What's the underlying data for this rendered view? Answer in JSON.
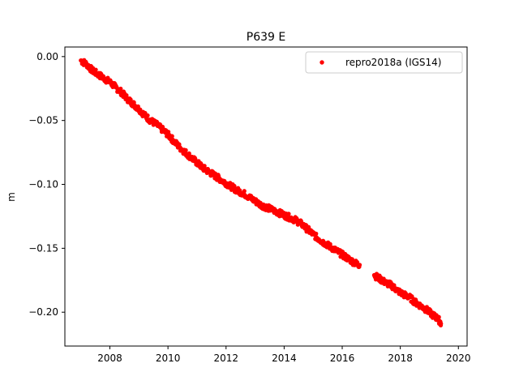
{
  "chart_data": {
    "type": "scatter",
    "title": "P639 E",
    "xlabel": "",
    "ylabel": "m",
    "xlim": [
      2006.45,
      2020.3
    ],
    "ylim": [
      -0.2265,
      0.0075
    ],
    "x_ticks": [
      2008,
      2010,
      2012,
      2014,
      2016,
      2018,
      2020
    ],
    "y_ticks": [
      0.0,
      -0.05,
      -0.1,
      -0.15,
      -0.2
    ],
    "y_tick_labels": [
      "0.00",
      "−0.05",
      "−0.10",
      "−0.15",
      "−0.20"
    ],
    "grid": false,
    "legend_position": "top-right",
    "series": [
      {
        "name": "repro2018a (IGS14)",
        "color": "#ff0000",
        "marker": "circle",
        "x": [
          2007.0,
          2007.2,
          2007.4,
          2007.6,
          2007.8,
          2008.0,
          2008.2,
          2008.4,
          2008.6,
          2008.8,
          2009.0,
          2009.2,
          2009.4,
          2009.6,
          2009.8,
          2010.0,
          2010.2,
          2010.4,
          2010.6,
          2010.8,
          2011.0,
          2011.2,
          2011.4,
          2011.6,
          2011.8,
          2012.0,
          2012.2,
          2012.4,
          2012.6,
          2012.8,
          2013.0,
          2013.2,
          2013.4,
          2013.6,
          2013.8,
          2014.0,
          2014.2,
          2014.4,
          2014.6,
          2014.8,
          2015.0,
          2015.2,
          2015.4,
          2015.6,
          2015.8,
          2016.0,
          2016.2,
          2016.4,
          2016.6,
          2017.1,
          2017.3,
          2017.5,
          2017.7,
          2017.9,
          2018.1,
          2018.3,
          2018.5,
          2018.7,
          2018.9,
          2019.1,
          2019.3,
          2019.4
        ],
        "y": [
          -0.003,
          -0.006,
          -0.011,
          -0.014,
          -0.017,
          -0.02,
          -0.024,
          -0.028,
          -0.033,
          -0.037,
          -0.041,
          -0.046,
          -0.05,
          -0.053,
          -0.057,
          -0.061,
          -0.066,
          -0.071,
          -0.075,
          -0.079,
          -0.083,
          -0.087,
          -0.09,
          -0.093,
          -0.096,
          -0.099,
          -0.102,
          -0.105,
          -0.107,
          -0.11,
          -0.113,
          -0.116,
          -0.118,
          -0.12,
          -0.122,
          -0.124,
          -0.126,
          -0.128,
          -0.131,
          -0.135,
          -0.139,
          -0.143,
          -0.146,
          -0.149,
          -0.152,
          -0.155,
          -0.158,
          -0.161,
          -0.163,
          -0.171,
          -0.174,
          -0.177,
          -0.179,
          -0.183,
          -0.186,
          -0.188,
          -0.192,
          -0.195,
          -0.198,
          -0.202,
          -0.205,
          -0.209
        ]
      }
    ]
  }
}
